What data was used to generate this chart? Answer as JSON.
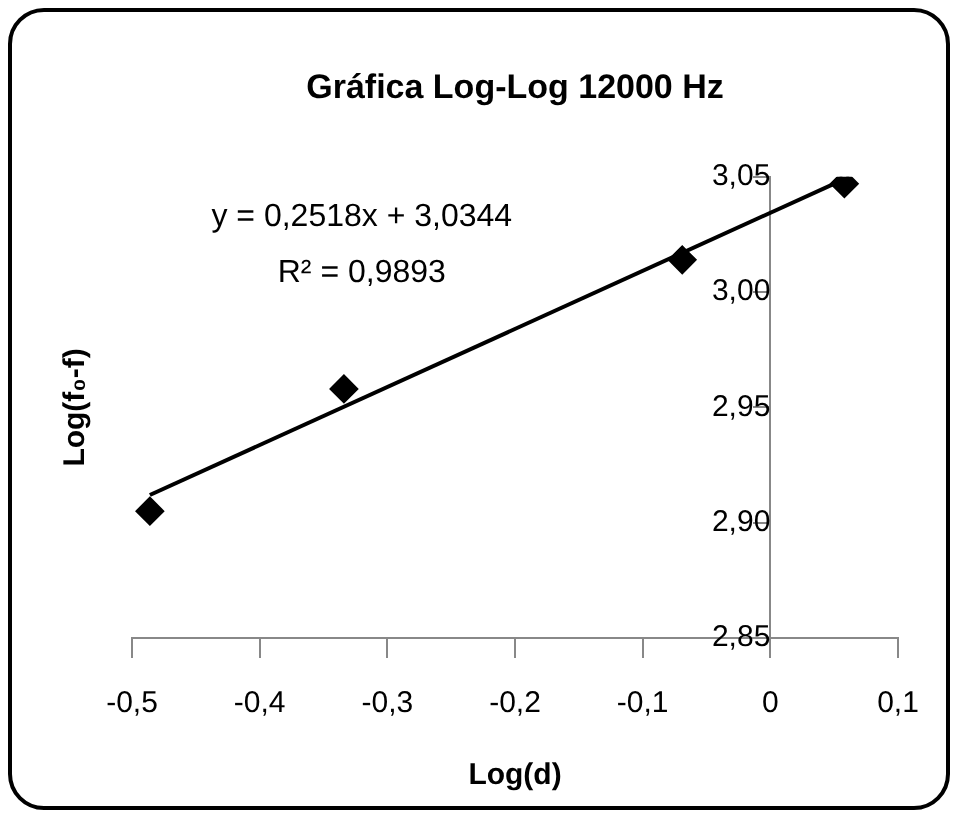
{
  "chart_data": {
    "type": "scatter",
    "title": "Gráfica Log-Log 12000 Hz",
    "xlabel": "Log(d)",
    "ylabel": "Log(f₀-f)",
    "annotations": [
      "y = 0,2518x + 3,0344",
      "R² = 0,9893"
    ],
    "x": [
      -0.486,
      -0.334,
      -0.069,
      0.058
    ],
    "series": [
      {
        "color": "#000000",
        "marker": "diamond",
        "values": [
          2.905,
          2.958,
          3.014,
          3.047
        ]
      },
      {
        "type": "line",
        "color": "#000000",
        "marker": "none",
        "line_style": "solid",
        "x": [
          -0.486,
          0.058
        ],
        "values": [
          2.912,
          3.049
        ]
      }
    ],
    "xlim": [
      -0.5,
      0.1
    ],
    "ylim": [
      2.85,
      3.05
    ],
    "xticks": [
      {
        "value": -0.5,
        "label": "-0,5"
      },
      {
        "value": -0.4,
        "label": "-0,4"
      },
      {
        "value": -0.3,
        "label": "-0,3"
      },
      {
        "value": -0.2,
        "label": "-0,2"
      },
      {
        "value": -0.1,
        "label": "-0,1"
      },
      0,
      {
        "value": 0.1,
        "label": "0,1"
      }
    ],
    "yticks": [
      {
        "value": 2.85,
        "label": "2,85"
      },
      {
        "value": 2.9,
        "label": "2,90"
      },
      {
        "value": 2.95,
        "label": "2,95"
      },
      {
        "value": 3.0,
        "label": "3,00"
      },
      {
        "value": 3.05,
        "label": "3,05"
      }
    ],
    "grid": false,
    "legend": false
  }
}
